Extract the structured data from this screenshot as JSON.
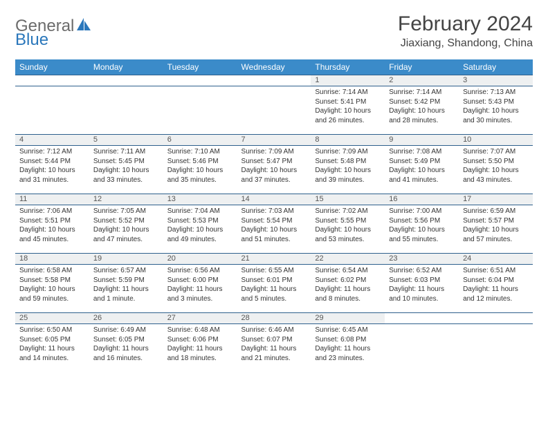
{
  "logo": {
    "text_gray": "General",
    "text_blue": "Blue"
  },
  "title": "February 2024",
  "location": "Jiaxiang, Shandong, China",
  "colors": {
    "header_bg": "#3b8bc9",
    "header_text": "#ffffff",
    "daynum_bg": "#eef0f1",
    "border": "#2d5f8c",
    "logo_gray": "#6b6b6b",
    "logo_blue": "#2a77bb"
  },
  "day_headers": [
    "Sunday",
    "Monday",
    "Tuesday",
    "Wednesday",
    "Thursday",
    "Friday",
    "Saturday"
  ],
  "weeks": [
    [
      {
        "n": "",
        "lines": []
      },
      {
        "n": "",
        "lines": []
      },
      {
        "n": "",
        "lines": []
      },
      {
        "n": "",
        "lines": []
      },
      {
        "n": "1",
        "lines": [
          "Sunrise: 7:14 AM",
          "Sunset: 5:41 PM",
          "Daylight: 10 hours and 26 minutes."
        ]
      },
      {
        "n": "2",
        "lines": [
          "Sunrise: 7:14 AM",
          "Sunset: 5:42 PM",
          "Daylight: 10 hours and 28 minutes."
        ]
      },
      {
        "n": "3",
        "lines": [
          "Sunrise: 7:13 AM",
          "Sunset: 5:43 PM",
          "Daylight: 10 hours and 30 minutes."
        ]
      }
    ],
    [
      {
        "n": "4",
        "lines": [
          "Sunrise: 7:12 AM",
          "Sunset: 5:44 PM",
          "Daylight: 10 hours and 31 minutes."
        ]
      },
      {
        "n": "5",
        "lines": [
          "Sunrise: 7:11 AM",
          "Sunset: 5:45 PM",
          "Daylight: 10 hours and 33 minutes."
        ]
      },
      {
        "n": "6",
        "lines": [
          "Sunrise: 7:10 AM",
          "Sunset: 5:46 PM",
          "Daylight: 10 hours and 35 minutes."
        ]
      },
      {
        "n": "7",
        "lines": [
          "Sunrise: 7:09 AM",
          "Sunset: 5:47 PM",
          "Daylight: 10 hours and 37 minutes."
        ]
      },
      {
        "n": "8",
        "lines": [
          "Sunrise: 7:09 AM",
          "Sunset: 5:48 PM",
          "Daylight: 10 hours and 39 minutes."
        ]
      },
      {
        "n": "9",
        "lines": [
          "Sunrise: 7:08 AM",
          "Sunset: 5:49 PM",
          "Daylight: 10 hours and 41 minutes."
        ]
      },
      {
        "n": "10",
        "lines": [
          "Sunrise: 7:07 AM",
          "Sunset: 5:50 PM",
          "Daylight: 10 hours and 43 minutes."
        ]
      }
    ],
    [
      {
        "n": "11",
        "lines": [
          "Sunrise: 7:06 AM",
          "Sunset: 5:51 PM",
          "Daylight: 10 hours and 45 minutes."
        ]
      },
      {
        "n": "12",
        "lines": [
          "Sunrise: 7:05 AM",
          "Sunset: 5:52 PM",
          "Daylight: 10 hours and 47 minutes."
        ]
      },
      {
        "n": "13",
        "lines": [
          "Sunrise: 7:04 AM",
          "Sunset: 5:53 PM",
          "Daylight: 10 hours and 49 minutes."
        ]
      },
      {
        "n": "14",
        "lines": [
          "Sunrise: 7:03 AM",
          "Sunset: 5:54 PM",
          "Daylight: 10 hours and 51 minutes."
        ]
      },
      {
        "n": "15",
        "lines": [
          "Sunrise: 7:02 AM",
          "Sunset: 5:55 PM",
          "Daylight: 10 hours and 53 minutes."
        ]
      },
      {
        "n": "16",
        "lines": [
          "Sunrise: 7:00 AM",
          "Sunset: 5:56 PM",
          "Daylight: 10 hours and 55 minutes."
        ]
      },
      {
        "n": "17",
        "lines": [
          "Sunrise: 6:59 AM",
          "Sunset: 5:57 PM",
          "Daylight: 10 hours and 57 minutes."
        ]
      }
    ],
    [
      {
        "n": "18",
        "lines": [
          "Sunrise: 6:58 AM",
          "Sunset: 5:58 PM",
          "Daylight: 10 hours and 59 minutes."
        ]
      },
      {
        "n": "19",
        "lines": [
          "Sunrise: 6:57 AM",
          "Sunset: 5:59 PM",
          "Daylight: 11 hours and 1 minute."
        ]
      },
      {
        "n": "20",
        "lines": [
          "Sunrise: 6:56 AM",
          "Sunset: 6:00 PM",
          "Daylight: 11 hours and 3 minutes."
        ]
      },
      {
        "n": "21",
        "lines": [
          "Sunrise: 6:55 AM",
          "Sunset: 6:01 PM",
          "Daylight: 11 hours and 5 minutes."
        ]
      },
      {
        "n": "22",
        "lines": [
          "Sunrise: 6:54 AM",
          "Sunset: 6:02 PM",
          "Daylight: 11 hours and 8 minutes."
        ]
      },
      {
        "n": "23",
        "lines": [
          "Sunrise: 6:52 AM",
          "Sunset: 6:03 PM",
          "Daylight: 11 hours and 10 minutes."
        ]
      },
      {
        "n": "24",
        "lines": [
          "Sunrise: 6:51 AM",
          "Sunset: 6:04 PM",
          "Daylight: 11 hours and 12 minutes."
        ]
      }
    ],
    [
      {
        "n": "25",
        "lines": [
          "Sunrise: 6:50 AM",
          "Sunset: 6:05 PM",
          "Daylight: 11 hours and 14 minutes."
        ]
      },
      {
        "n": "26",
        "lines": [
          "Sunrise: 6:49 AM",
          "Sunset: 6:05 PM",
          "Daylight: 11 hours and 16 minutes."
        ]
      },
      {
        "n": "27",
        "lines": [
          "Sunrise: 6:48 AM",
          "Sunset: 6:06 PM",
          "Daylight: 11 hours and 18 minutes."
        ]
      },
      {
        "n": "28",
        "lines": [
          "Sunrise: 6:46 AM",
          "Sunset: 6:07 PM",
          "Daylight: 11 hours and 21 minutes."
        ]
      },
      {
        "n": "29",
        "lines": [
          "Sunrise: 6:45 AM",
          "Sunset: 6:08 PM",
          "Daylight: 11 hours and 23 minutes."
        ]
      },
      {
        "n": "",
        "lines": []
      },
      {
        "n": "",
        "lines": []
      }
    ]
  ]
}
